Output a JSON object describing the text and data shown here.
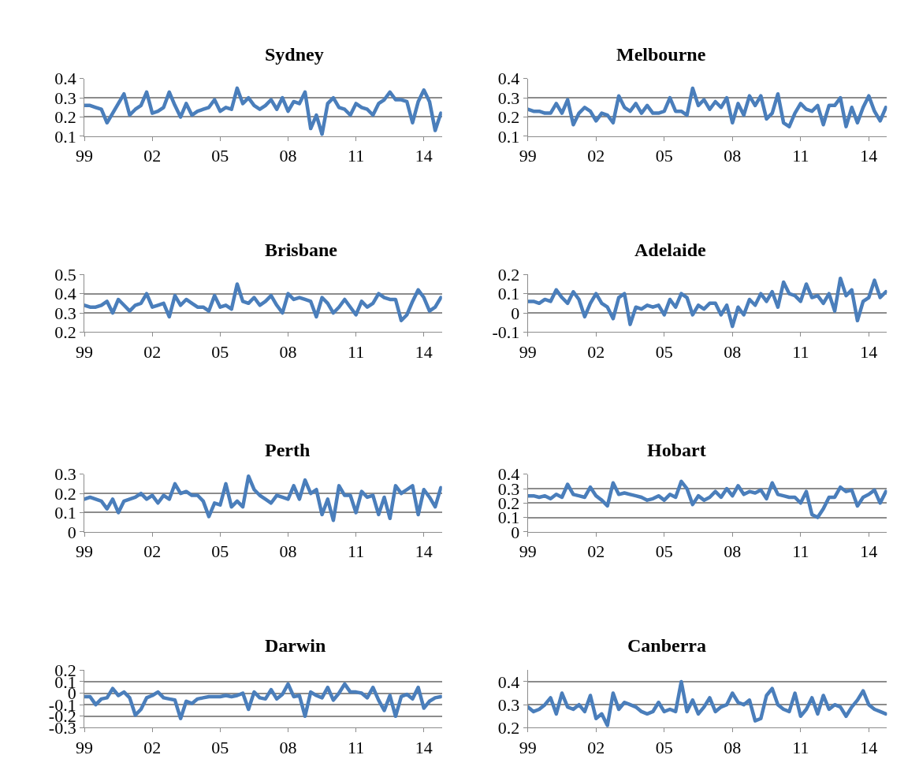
{
  "chart_data": [
    {
      "type": "line",
      "title": "Sydney",
      "x": [
        1999,
        1999.25,
        1999.5,
        1999.75,
        2000,
        2000.25,
        2000.5,
        2000.75,
        2001,
        2001.25,
        2001.5,
        2001.75,
        2002,
        2002.25,
        2002.5,
        2002.75,
        2003,
        2003.25,
        2003.5,
        2003.75,
        2004,
        2004.25,
        2004.5,
        2004.75,
        2005,
        2005.25,
        2005.5,
        2005.75,
        2006,
        2006.25,
        2006.5,
        2006.75,
        2007,
        2007.25,
        2007.5,
        2007.75,
        2008,
        2008.25,
        2008.5,
        2008.75,
        2009,
        2009.25,
        2009.5,
        2009.75,
        2010,
        2010.25,
        2010.5,
        2010.75,
        2011,
        2011.25,
        2011.5,
        2011.75,
        2012,
        2012.25,
        2012.5,
        2012.75,
        2013,
        2013.25,
        2013.5,
        2013.75,
        2014,
        2014.25,
        2014.5,
        2014.75
      ],
      "series": [
        {
          "color": "#4a7ebb",
          "values": [
            0.26,
            0.26,
            0.25,
            0.24,
            0.17,
            0.22,
            0.27,
            0.32,
            0.21,
            0.24,
            0.26,
            0.33,
            0.22,
            0.23,
            0.25,
            0.33,
            0.26,
            0.2,
            0.27,
            0.21,
            0.23,
            0.24,
            0.25,
            0.29,
            0.23,
            0.25,
            0.24,
            0.35,
            0.27,
            0.3,
            0.26,
            0.24,
            0.26,
            0.29,
            0.24,
            0.3,
            0.23,
            0.28,
            0.27,
            0.33,
            0.14,
            0.21,
            0.11,
            0.27,
            0.3,
            0.25,
            0.24,
            0.21,
            0.27,
            0.25,
            0.24,
            0.21,
            0.27,
            0.29,
            0.33,
            0.29,
            0.29,
            0.28,
            0.17,
            0.28,
            0.34,
            0.28,
            0.13,
            0.22
          ]
        }
      ],
      "xlim": [
        1999,
        2014.8
      ],
      "xticks": [
        {
          "value": 1999,
          "label": "99"
        },
        {
          "value": 2002,
          "label": "02"
        },
        {
          "value": 2005,
          "label": "05"
        },
        {
          "value": 2008,
          "label": "08"
        },
        {
          "value": 2011,
          "label": "11"
        },
        {
          "value": 2014,
          "label": "14"
        }
      ],
      "ylim": [
        0.1,
        0.4
      ],
      "yticks": [
        0.1,
        0.2,
        0.3,
        0.4
      ],
      "grid": "y",
      "legend": false,
      "marker": "none",
      "line_style": "solid"
    },
    {
      "type": "line",
      "title": "Melbourne",
      "x": [
        1999,
        1999.25,
        1999.5,
        1999.75,
        2000,
        2000.25,
        2000.5,
        2000.75,
        2001,
        2001.25,
        2001.5,
        2001.75,
        2002,
        2002.25,
        2002.5,
        2002.75,
        2003,
        2003.25,
        2003.5,
        2003.75,
        2004,
        2004.25,
        2004.5,
        2004.75,
        2005,
        2005.25,
        2005.5,
        2005.75,
        2006,
        2006.25,
        2006.5,
        2006.75,
        2007,
        2007.25,
        2007.5,
        2007.75,
        2008,
        2008.25,
        2008.5,
        2008.75,
        2009,
        2009.25,
        2009.5,
        2009.75,
        2010,
        2010.25,
        2010.5,
        2010.75,
        2011,
        2011.25,
        2011.5,
        2011.75,
        2012,
        2012.25,
        2012.5,
        2012.75,
        2013,
        2013.25,
        2013.5,
        2013.75,
        2014,
        2014.25,
        2014.5,
        2014.75
      ],
      "series": [
        {
          "color": "#4a7ebb",
          "values": [
            0.24,
            0.23,
            0.23,
            0.22,
            0.22,
            0.27,
            0.22,
            0.29,
            0.16,
            0.22,
            0.25,
            0.23,
            0.18,
            0.22,
            0.21,
            0.17,
            0.31,
            0.25,
            0.23,
            0.27,
            0.22,
            0.26,
            0.22,
            0.22,
            0.23,
            0.3,
            0.23,
            0.23,
            0.21,
            0.35,
            0.26,
            0.29,
            0.24,
            0.28,
            0.25,
            0.3,
            0.17,
            0.27,
            0.21,
            0.31,
            0.26,
            0.31,
            0.19,
            0.22,
            0.32,
            0.17,
            0.15,
            0.22,
            0.27,
            0.24,
            0.23,
            0.26,
            0.16,
            0.26,
            0.26,
            0.3,
            0.15,
            0.25,
            0.17,
            0.25,
            0.31,
            0.23,
            0.18,
            0.25
          ]
        }
      ],
      "xlim": [
        1999,
        2014.8
      ],
      "xticks": [
        {
          "value": 1999,
          "label": "99"
        },
        {
          "value": 2002,
          "label": "02"
        },
        {
          "value": 2005,
          "label": "05"
        },
        {
          "value": 2008,
          "label": "08"
        },
        {
          "value": 2011,
          "label": "11"
        },
        {
          "value": 2014,
          "label": "14"
        }
      ],
      "ylim": [
        0.1,
        0.4
      ],
      "yticks": [
        0.1,
        0.2,
        0.3,
        0.4
      ],
      "grid": "y",
      "legend": false,
      "marker": "none",
      "line_style": "solid"
    },
    {
      "type": "line",
      "title": "Brisbane",
      "x": [
        1999,
        1999.25,
        1999.5,
        1999.75,
        2000,
        2000.25,
        2000.5,
        2000.75,
        2001,
        2001.25,
        2001.5,
        2001.75,
        2002,
        2002.25,
        2002.5,
        2002.75,
        2003,
        2003.25,
        2003.5,
        2003.75,
        2004,
        2004.25,
        2004.5,
        2004.75,
        2005,
        2005.25,
        2005.5,
        2005.75,
        2006,
        2006.25,
        2006.5,
        2006.75,
        2007,
        2007.25,
        2007.5,
        2007.75,
        2008,
        2008.25,
        2008.5,
        2008.75,
        2009,
        2009.25,
        2009.5,
        2009.75,
        2010,
        2010.25,
        2010.5,
        2010.75,
        2011,
        2011.25,
        2011.5,
        2011.75,
        2012,
        2012.25,
        2012.5,
        2012.75,
        2013,
        2013.25,
        2013.5,
        2013.75,
        2014,
        2014.25,
        2014.5,
        2014.75
      ],
      "series": [
        {
          "color": "#4a7ebb",
          "values": [
            0.34,
            0.33,
            0.33,
            0.34,
            0.36,
            0.3,
            0.37,
            0.34,
            0.31,
            0.34,
            0.35,
            0.4,
            0.33,
            0.34,
            0.35,
            0.28,
            0.39,
            0.34,
            0.37,
            0.35,
            0.33,
            0.33,
            0.31,
            0.39,
            0.33,
            0.34,
            0.32,
            0.45,
            0.36,
            0.35,
            0.38,
            0.34,
            0.36,
            0.39,
            0.34,
            0.3,
            0.4,
            0.37,
            0.38,
            0.37,
            0.36,
            0.28,
            0.38,
            0.35,
            0.3,
            0.33,
            0.37,
            0.33,
            0.29,
            0.36,
            0.33,
            0.35,
            0.4,
            0.38,
            0.37,
            0.37,
            0.26,
            0.29,
            0.36,
            0.42,
            0.38,
            0.31,
            0.33,
            0.38
          ]
        }
      ],
      "xlim": [
        1999,
        2014.8
      ],
      "xticks": [
        {
          "value": 1999,
          "label": "99"
        },
        {
          "value": 2002,
          "label": "02"
        },
        {
          "value": 2005,
          "label": "05"
        },
        {
          "value": 2008,
          "label": "08"
        },
        {
          "value": 2011,
          "label": "11"
        },
        {
          "value": 2014,
          "label": "14"
        }
      ],
      "ylim": [
        0.2,
        0.5
      ],
      "yticks": [
        0.2,
        0.3,
        0.4,
        0.5
      ],
      "grid": "y",
      "legend": false,
      "marker": "none",
      "line_style": "solid"
    },
    {
      "type": "line",
      "title": "Adelaide",
      "x": [
        1999,
        1999.25,
        1999.5,
        1999.75,
        2000,
        2000.25,
        2000.5,
        2000.75,
        2001,
        2001.25,
        2001.5,
        2001.75,
        2002,
        2002.25,
        2002.5,
        2002.75,
        2003,
        2003.25,
        2003.5,
        2003.75,
        2004,
        2004.25,
        2004.5,
        2004.75,
        2005,
        2005.25,
        2005.5,
        2005.75,
        2006,
        2006.25,
        2006.5,
        2006.75,
        2007,
        2007.25,
        2007.5,
        2007.75,
        2008,
        2008.25,
        2008.5,
        2008.75,
        2009,
        2009.25,
        2009.5,
        2009.75,
        2010,
        2010.25,
        2010.5,
        2010.75,
        2011,
        2011.25,
        2011.5,
        2011.75,
        2012,
        2012.25,
        2012.5,
        2012.75,
        2013,
        2013.25,
        2013.5,
        2013.75,
        2014,
        2014.25,
        2014.5,
        2014.75
      ],
      "series": [
        {
          "color": "#4a7ebb",
          "values": [
            0.06,
            0.06,
            0.05,
            0.07,
            0.06,
            0.12,
            0.08,
            0.05,
            0.11,
            0.07,
            -0.02,
            0.05,
            0.1,
            0.05,
            0.03,
            -0.03,
            0.08,
            0.1,
            -0.06,
            0.03,
            0.02,
            0.04,
            0.03,
            0.04,
            -0.01,
            0.07,
            0.03,
            0.1,
            0.08,
            -0.01,
            0.04,
            0.02,
            0.05,
            0.05,
            -0.01,
            0.04,
            -0.07,
            0.03,
            -0.01,
            0.07,
            0.04,
            0.1,
            0.06,
            0.11,
            0.03,
            0.16,
            0.1,
            0.09,
            0.06,
            0.15,
            0.08,
            0.09,
            0.05,
            0.1,
            0.01,
            0.18,
            0.09,
            0.12,
            -0.04,
            0.06,
            0.08,
            0.17,
            0.08,
            0.11
          ]
        }
      ],
      "xlim": [
        1999,
        2014.8
      ],
      "xticks": [
        {
          "value": 1999,
          "label": "99"
        },
        {
          "value": 2002,
          "label": "02"
        },
        {
          "value": 2005,
          "label": "05"
        },
        {
          "value": 2008,
          "label": "08"
        },
        {
          "value": 2011,
          "label": "11"
        },
        {
          "value": 2014,
          "label": "14"
        }
      ],
      "ylim": [
        -0.1,
        0.2
      ],
      "yticks": [
        -0.1,
        0,
        0.1,
        0.2
      ],
      "grid": "y",
      "legend": false,
      "marker": "none",
      "line_style": "solid"
    },
    {
      "type": "line",
      "title": "Perth",
      "x": [
        1999,
        1999.25,
        1999.5,
        1999.75,
        2000,
        2000.25,
        2000.5,
        2000.75,
        2001,
        2001.25,
        2001.5,
        2001.75,
        2002,
        2002.25,
        2002.5,
        2002.75,
        2003,
        2003.25,
        2003.5,
        2003.75,
        2004,
        2004.25,
        2004.5,
        2004.75,
        2005,
        2005.25,
        2005.5,
        2005.75,
        2006,
        2006.25,
        2006.5,
        2006.75,
        2007,
        2007.25,
        2007.5,
        2007.75,
        2008,
        2008.25,
        2008.5,
        2008.75,
        2009,
        2009.25,
        2009.5,
        2009.75,
        2010,
        2010.25,
        2010.5,
        2010.75,
        2011,
        2011.25,
        2011.5,
        2011.75,
        2012,
        2012.25,
        2012.5,
        2012.75,
        2013,
        2013.25,
        2013.5,
        2013.75,
        2014,
        2014.25,
        2014.5,
        2014.75
      ],
      "series": [
        {
          "color": "#4a7ebb",
          "values": [
            0.17,
            0.18,
            0.17,
            0.16,
            0.12,
            0.17,
            0.1,
            0.16,
            0.17,
            0.18,
            0.2,
            0.17,
            0.19,
            0.15,
            0.19,
            0.17,
            0.25,
            0.2,
            0.21,
            0.19,
            0.19,
            0.16,
            0.08,
            0.15,
            0.14,
            0.25,
            0.13,
            0.16,
            0.13,
            0.29,
            0.22,
            0.19,
            0.17,
            0.15,
            0.19,
            0.18,
            0.17,
            0.24,
            0.17,
            0.27,
            0.2,
            0.22,
            0.09,
            0.17,
            0.06,
            0.24,
            0.19,
            0.19,
            0.1,
            0.21,
            0.18,
            0.19,
            0.09,
            0.18,
            0.07,
            0.24,
            0.2,
            0.22,
            0.24,
            0.09,
            0.22,
            0.18,
            0.13,
            0.23
          ]
        }
      ],
      "xlim": [
        1999,
        2014.8
      ],
      "xticks": [
        {
          "value": 1999,
          "label": "99"
        },
        {
          "value": 2002,
          "label": "02"
        },
        {
          "value": 2005,
          "label": "05"
        },
        {
          "value": 2008,
          "label": "08"
        },
        {
          "value": 2011,
          "label": "11"
        },
        {
          "value": 2014,
          "label": "14"
        }
      ],
      "ylim": [
        0,
        0.3
      ],
      "yticks": [
        0,
        0.1,
        0.2,
        0.3
      ],
      "grid": "y",
      "legend": false,
      "marker": "none",
      "line_style": "solid"
    },
    {
      "type": "line",
      "title": "Hobart",
      "x": [
        1999,
        1999.25,
        1999.5,
        1999.75,
        2000,
        2000.25,
        2000.5,
        2000.75,
        2001,
        2001.25,
        2001.5,
        2001.75,
        2002,
        2002.25,
        2002.5,
        2002.75,
        2003,
        2003.25,
        2003.5,
        2003.75,
        2004,
        2004.25,
        2004.5,
        2004.75,
        2005,
        2005.25,
        2005.5,
        2005.75,
        2006,
        2006.25,
        2006.5,
        2006.75,
        2007,
        2007.25,
        2007.5,
        2007.75,
        2008,
        2008.25,
        2008.5,
        2008.75,
        2009,
        2009.25,
        2009.5,
        2009.75,
        2010,
        2010.25,
        2010.5,
        2010.75,
        2011,
        2011.25,
        2011.5,
        2011.75,
        2012,
        2012.25,
        2012.5,
        2012.75,
        2013,
        2013.25,
        2013.5,
        2013.75,
        2014,
        2014.25,
        2014.5,
        2014.75
      ],
      "series": [
        {
          "color": "#4a7ebb",
          "values": [
            0.25,
            0.25,
            0.24,
            0.25,
            0.23,
            0.26,
            0.24,
            0.33,
            0.26,
            0.25,
            0.24,
            0.31,
            0.25,
            0.22,
            0.18,
            0.34,
            0.26,
            0.27,
            0.26,
            0.25,
            0.24,
            0.22,
            0.23,
            0.25,
            0.22,
            0.26,
            0.24,
            0.35,
            0.3,
            0.19,
            0.25,
            0.22,
            0.24,
            0.28,
            0.24,
            0.3,
            0.25,
            0.32,
            0.26,
            0.28,
            0.27,
            0.29,
            0.23,
            0.34,
            0.26,
            0.25,
            0.24,
            0.24,
            0.2,
            0.28,
            0.12,
            0.1,
            0.16,
            0.24,
            0.24,
            0.31,
            0.28,
            0.29,
            0.18,
            0.24,
            0.26,
            0.29,
            0.2,
            0.28
          ]
        }
      ],
      "xlim": [
        1999,
        2014.8
      ],
      "xticks": [
        {
          "value": 1999,
          "label": "99"
        },
        {
          "value": 2002,
          "label": "02"
        },
        {
          "value": 2005,
          "label": "05"
        },
        {
          "value": 2008,
          "label": "08"
        },
        {
          "value": 2011,
          "label": "11"
        },
        {
          "value": 2014,
          "label": "14"
        }
      ],
      "ylim": [
        0,
        0.4
      ],
      "yticks": [
        0,
        0.1,
        0.2,
        0.3,
        0.4
      ],
      "grid": "y",
      "legend": false,
      "marker": "none",
      "line_style": "solid"
    },
    {
      "type": "line",
      "title": "Darwin",
      "x": [
        1999,
        1999.25,
        1999.5,
        1999.75,
        2000,
        2000.25,
        2000.5,
        2000.75,
        2001,
        2001.25,
        2001.5,
        2001.75,
        2002,
        2002.25,
        2002.5,
        2002.75,
        2003,
        2003.25,
        2003.5,
        2003.75,
        2004,
        2004.25,
        2004.5,
        2004.75,
        2005,
        2005.25,
        2005.5,
        2005.75,
        2006,
        2006.25,
        2006.5,
        2006.75,
        2007,
        2007.25,
        2007.5,
        2007.75,
        2008,
        2008.25,
        2008.5,
        2008.75,
        2009,
        2009.25,
        2009.5,
        2009.75,
        2010,
        2010.25,
        2010.5,
        2010.75,
        2011,
        2011.25,
        2011.5,
        2011.75,
        2012,
        2012.25,
        2012.5,
        2012.75,
        2013,
        2013.25,
        2013.5,
        2013.75,
        2014,
        2014.25,
        2014.5,
        2014.75
      ],
      "series": [
        {
          "color": "#4a7ebb",
          "values": [
            -0.03,
            -0.03,
            -0.1,
            -0.05,
            -0.04,
            0.04,
            -0.02,
            0.01,
            -0.04,
            -0.19,
            -0.14,
            -0.04,
            -0.02,
            0.01,
            -0.04,
            -0.05,
            -0.06,
            -0.22,
            -0.07,
            -0.09,
            -0.05,
            -0.04,
            -0.03,
            -0.03,
            -0.03,
            -0.02,
            -0.03,
            -0.02,
            0,
            -0.14,
            0.01,
            -0.04,
            -0.05,
            0.03,
            -0.05,
            -0.01,
            0.08,
            -0.03,
            -0.02,
            -0.2,
            0.01,
            -0.02,
            -0.04,
            0.05,
            -0.06,
            0,
            0.08,
            0.01,
            0.01,
            0,
            -0.04,
            0.05,
            -0.06,
            -0.15,
            -0.02,
            -0.2,
            -0.03,
            -0.01,
            -0.05,
            0.05,
            -0.13,
            -0.07,
            -0.04,
            -0.03
          ]
        }
      ],
      "xlim": [
        1999,
        2014.8
      ],
      "xticks": [
        {
          "value": 1999,
          "label": "99"
        },
        {
          "value": 2002,
          "label": "02"
        },
        {
          "value": 2005,
          "label": "05"
        },
        {
          "value": 2008,
          "label": "08"
        },
        {
          "value": 2011,
          "label": "11"
        },
        {
          "value": 2014,
          "label": "14"
        }
      ],
      "ylim": [
        -0.3,
        0.2
      ],
      "yticks": [
        -0.3,
        -0.2,
        -0.1,
        0,
        0.1,
        0.2
      ],
      "grid": "y",
      "legend": false,
      "marker": "none",
      "line_style": "solid"
    },
    {
      "type": "line",
      "title": "Canberra",
      "x": [
        1999,
        1999.25,
        1999.5,
        1999.75,
        2000,
        2000.25,
        2000.5,
        2000.75,
        2001,
        2001.25,
        2001.5,
        2001.75,
        2002,
        2002.25,
        2002.5,
        2002.75,
        2003,
        2003.25,
        2003.5,
        2003.75,
        2004,
        2004.25,
        2004.5,
        2004.75,
        2005,
        2005.25,
        2005.5,
        2005.75,
        2006,
        2006.25,
        2006.5,
        2006.75,
        2007,
        2007.25,
        2007.5,
        2007.75,
        2008,
        2008.25,
        2008.5,
        2008.75,
        2009,
        2009.25,
        2009.5,
        2009.75,
        2010,
        2010.25,
        2010.5,
        2010.75,
        2011,
        2011.25,
        2011.5,
        2011.75,
        2012,
        2012.25,
        2012.5,
        2012.75,
        2013,
        2013.25,
        2013.5,
        2013.75,
        2014,
        2014.25,
        2014.5,
        2014.75
      ],
      "series": [
        {
          "color": "#4a7ebb",
          "values": [
            0.29,
            0.27,
            0.28,
            0.3,
            0.33,
            0.26,
            0.35,
            0.29,
            0.28,
            0.3,
            0.27,
            0.34,
            0.24,
            0.26,
            0.21,
            0.35,
            0.28,
            0.31,
            0.3,
            0.29,
            0.27,
            0.26,
            0.27,
            0.31,
            0.27,
            0.28,
            0.27,
            0.4,
            0.27,
            0.32,
            0.26,
            0.29,
            0.33,
            0.27,
            0.29,
            0.3,
            0.35,
            0.31,
            0.3,
            0.32,
            0.23,
            0.24,
            0.34,
            0.37,
            0.3,
            0.28,
            0.27,
            0.35,
            0.25,
            0.28,
            0.33,
            0.26,
            0.34,
            0.28,
            0.3,
            0.29,
            0.25,
            0.29,
            0.32,
            0.36,
            0.3,
            0.28,
            0.27,
            0.26
          ]
        }
      ],
      "xlim": [
        1999,
        2014.8
      ],
      "xticks": [
        {
          "value": 1999,
          "label": "99"
        },
        {
          "value": 2002,
          "label": "02"
        },
        {
          "value": 2005,
          "label": "05"
        },
        {
          "value": 2008,
          "label": "08"
        },
        {
          "value": 2011,
          "label": "11"
        },
        {
          "value": 2014,
          "label": "14"
        }
      ],
      "ylim": [
        0.2,
        0.45
      ],
      "yticks": [
        0.2,
        0.3,
        0.4
      ],
      "grid": "y",
      "legend": false,
      "marker": "none",
      "line_style": "solid"
    }
  ]
}
